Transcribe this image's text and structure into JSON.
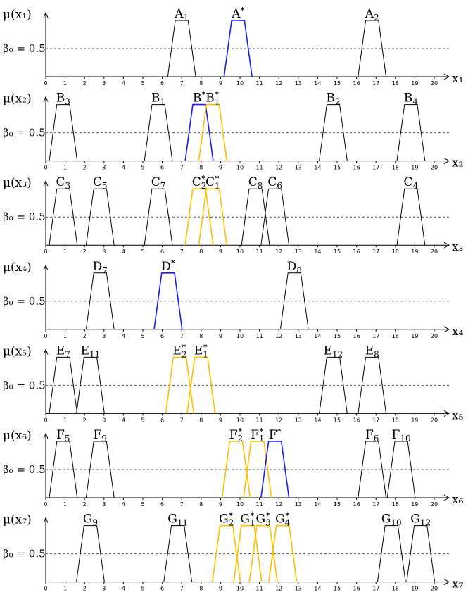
{
  "colors": {
    "black": "#000000",
    "blue": "#1a1aff",
    "orange": "#ffbf00",
    "dash": "#555555"
  },
  "chart_data": [
    {
      "type": "line",
      "ylabel": "μ(x₁)",
      "beta_label": "β₀ = 0.5",
      "xlabel": "x₁",
      "xlim": [
        0,
        20
      ],
      "ylim": [
        0,
        1
      ],
      "beta": 0.5,
      "xticks": [
        "0",
        "1",
        "2",
        "3",
        "4",
        "5",
        "6",
        "7",
        "8",
        "9",
        "10",
        "11",
        "12",
        "13",
        "14",
        "15",
        "16",
        "17",
        "18",
        "19",
        "20"
      ],
      "sets": [
        {
          "name": "A",
          "sub": "1",
          "star": false,
          "color": "black",
          "center": 7.0
        },
        {
          "name": "A",
          "sub": "",
          "star": true,
          "color": "blue",
          "center": 9.9
        },
        {
          "name": "A",
          "sub": "2",
          "star": false,
          "color": "black",
          "center": 16.8
        }
      ]
    },
    {
      "type": "line",
      "ylabel": "μ(x₂)",
      "beta_label": "β₀ = 0.5",
      "xlabel": "x₂",
      "xlim": [
        0,
        20
      ],
      "ylim": [
        0,
        1
      ],
      "beta": 0.5,
      "xticks": [
        "0",
        "1",
        "2",
        "3",
        "4",
        "5",
        "6",
        "7",
        "8",
        "9",
        "10",
        "11",
        "12",
        "13",
        "14",
        "15",
        "16",
        "17",
        "18",
        "19",
        "20"
      ],
      "sets": [
        {
          "name": "B",
          "sub": "3",
          "star": false,
          "color": "black",
          "center": 0.9
        },
        {
          "name": "B",
          "sub": "1",
          "star": false,
          "color": "black",
          "center": 5.8
        },
        {
          "name": "B",
          "sub": "",
          "star": true,
          "color": "blue",
          "center": 7.9
        },
        {
          "name": "B",
          "sub": "1",
          "star": true,
          "color": "orange",
          "center": 8.6
        },
        {
          "name": "B",
          "sub": "2",
          "star": false,
          "color": "black",
          "center": 14.8
        },
        {
          "name": "B",
          "sub": "4",
          "star": false,
          "color": "black",
          "center": 18.8
        }
      ]
    },
    {
      "type": "line",
      "ylabel": "μ(x₃)",
      "beta_label": "β₀ = 0.5",
      "xlabel": "x₃",
      "xlim": [
        0,
        20
      ],
      "ylim": [
        0,
        1
      ],
      "beta": 0.5,
      "xticks": [
        "0",
        "1",
        "2",
        "3",
        "4",
        "5",
        "6",
        "7",
        "8",
        "9",
        "10",
        "11",
        "12",
        "13",
        "14",
        "15",
        "16",
        "17",
        "18",
        "19",
        "20"
      ],
      "sets": [
        {
          "name": "C",
          "sub": "3",
          "star": false,
          "color": "black",
          "center": 0.9
        },
        {
          "name": "C",
          "sub": "5",
          "star": false,
          "color": "black",
          "center": 2.8
        },
        {
          "name": "C",
          "sub": "7",
          "star": false,
          "color": "black",
          "center": 5.8
        },
        {
          "name": "C",
          "sub": "2",
          "star": true,
          "color": "orange",
          "center": 7.9
        },
        {
          "name": "C",
          "sub": "1",
          "star": true,
          "color": "orange",
          "center": 8.6
        },
        {
          "name": "C",
          "sub": "8",
          "star": false,
          "color": "black",
          "center": 10.8
        },
        {
          "name": "C",
          "sub": "6",
          "star": false,
          "color": "black",
          "center": 11.8
        },
        {
          "name": "C",
          "sub": "4",
          "star": false,
          "color": "black",
          "center": 18.8
        }
      ]
    },
    {
      "type": "line",
      "ylabel": "μ(x₄)",
      "beta_label": "β₀ = 0.5",
      "xlabel": "x₄",
      "xlim": [
        0,
        20
      ],
      "ylim": [
        0,
        1
      ],
      "beta": 0.5,
      "xticks": [
        "0",
        "1",
        "2",
        "3",
        "4",
        "5",
        "6",
        "7",
        "8",
        "9",
        "10",
        "11",
        "12",
        "13",
        "14",
        "15",
        "16",
        "17",
        "18",
        "19",
        "20"
      ],
      "sets": [
        {
          "name": "D",
          "sub": "7",
          "star": false,
          "color": "black",
          "center": 2.8
        },
        {
          "name": "D",
          "sub": "",
          "star": true,
          "color": "blue",
          "center": 6.3
        },
        {
          "name": "D",
          "sub": "8",
          "star": false,
          "color": "black",
          "center": 12.8
        }
      ]
    },
    {
      "type": "line",
      "ylabel": "μ(x₅)",
      "beta_label": "β₀ = 0.5",
      "xlabel": "x₅",
      "xlim": [
        0,
        20
      ],
      "ylim": [
        0,
        1
      ],
      "beta": 0.5,
      "xticks": [
        "0",
        "1",
        "2",
        "3",
        "4",
        "5",
        "6",
        "7",
        "8",
        "9",
        "10",
        "11",
        "12",
        "13",
        "14",
        "15",
        "16",
        "17",
        "18",
        "19",
        "20"
      ],
      "sets": [
        {
          "name": "E",
          "sub": "7",
          "star": false,
          "color": "black",
          "center": 0.9
        },
        {
          "name": "E",
          "sub": "11",
          "star": false,
          "color": "black",
          "center": 2.3
        },
        {
          "name": "E",
          "sub": "2",
          "star": true,
          "color": "orange",
          "center": 6.9
        },
        {
          "name": "E",
          "sub": "1",
          "star": true,
          "color": "orange",
          "center": 8.0
        },
        {
          "name": "E",
          "sub": "12",
          "star": false,
          "color": "black",
          "center": 14.8
        },
        {
          "name": "E",
          "sub": "8",
          "star": false,
          "color": "black",
          "center": 16.8
        }
      ]
    },
    {
      "type": "line",
      "ylabel": "μ(x₆)",
      "beta_label": "β₀ = 0.5",
      "xlabel": "x₆",
      "xlim": [
        0,
        20
      ],
      "ylim": [
        0,
        1
      ],
      "beta": 0.5,
      "xticks": [
        "0",
        "1",
        "2",
        "3",
        "4",
        "5",
        "6",
        "7",
        "8",
        "9",
        "10",
        "11",
        "12",
        "13",
        "14",
        "15",
        "16",
        "17",
        "18",
        "19",
        "20"
      ],
      "sets": [
        {
          "name": "F",
          "sub": "5",
          "star": false,
          "color": "black",
          "center": 0.9
        },
        {
          "name": "F",
          "sub": "9",
          "star": false,
          "color": "black",
          "center": 2.8
        },
        {
          "name": "F",
          "sub": "2",
          "star": true,
          "color": "orange",
          "center": 9.8
        },
        {
          "name": "F",
          "sub": "1",
          "star": true,
          "color": "orange",
          "center": 10.9
        },
        {
          "name": "F",
          "sub": "",
          "star": true,
          "color": "blue",
          "center": 11.8
        },
        {
          "name": "F",
          "sub": "6",
          "star": false,
          "color": "black",
          "center": 16.8
        },
        {
          "name": "F",
          "sub": "10",
          "star": false,
          "color": "black",
          "center": 18.3
        }
      ]
    },
    {
      "type": "line",
      "ylabel": "μ(x₇)",
      "beta_label": "β₀ = 0.5",
      "xlabel": "x₇",
      "xlim": [
        0,
        20
      ],
      "ylim": [
        0,
        1
      ],
      "beta": 0.5,
      "xticks": [
        "0",
        "1",
        "2",
        "3",
        "4",
        "5",
        "6",
        "7",
        "8",
        "9",
        "10",
        "11",
        "12",
        "13",
        "14",
        "15",
        "16",
        "17",
        "18",
        "19",
        "20"
      ],
      "sets": [
        {
          "name": "G",
          "sub": "9",
          "star": false,
          "color": "black",
          "center": 2.3
        },
        {
          "name": "G",
          "sub": "11",
          "star": false,
          "color": "black",
          "center": 6.8
        },
        {
          "name": "G",
          "sub": "2",
          "star": true,
          "color": "orange",
          "center": 9.3
        },
        {
          "name": "G",
          "sub": "1",
          "star": true,
          "color": "orange",
          "center": 10.4
        },
        {
          "name": "G",
          "sub": "3",
          "star": true,
          "color": "orange",
          "center": 11.2
        },
        {
          "name": "G",
          "sub": "4",
          "star": true,
          "color": "orange",
          "center": 12.2
        },
        {
          "name": "G",
          "sub": "10",
          "star": false,
          "color": "black",
          "center": 17.8
        },
        {
          "name": "G",
          "sub": "12",
          "star": false,
          "color": "black",
          "center": 19.3
        }
      ]
    }
  ]
}
